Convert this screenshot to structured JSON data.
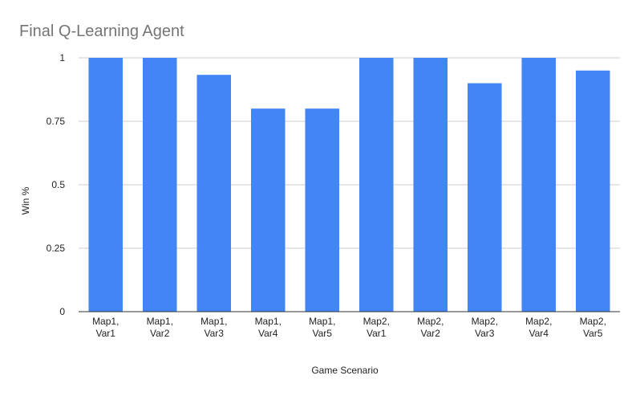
{
  "chart_data": {
    "type": "bar",
    "title": "Final Q-Learning Agent",
    "xlabel": "Game Scenario",
    "ylabel": "Win %",
    "categories": [
      [
        "Map1,",
        "Var1"
      ],
      [
        "Map1,",
        "Var2"
      ],
      [
        "Map1,",
        "Var3"
      ],
      [
        "Map1,",
        "Var4"
      ],
      [
        "Map1,",
        "Var5"
      ],
      [
        "Map2,",
        "Var1"
      ],
      [
        "Map2,",
        "Var2"
      ],
      [
        "Map2,",
        "Var3"
      ],
      [
        "Map2,",
        "Var4"
      ],
      [
        "Map2,",
        "Var5"
      ]
    ],
    "values": [
      1,
      1,
      0.933,
      0.8,
      0.8,
      1,
      1,
      0.9,
      1,
      0.95
    ],
    "ylim": [
      0,
      1
    ],
    "yticks": [
      "0",
      "0.25",
      "0.5",
      "0.75",
      "1"
    ],
    "grid": true,
    "legend": "none",
    "colors": {
      "bar": "#4285f4",
      "grid": "#cccccc",
      "axis": "#333333",
      "title": "#757575",
      "text": "#222222"
    }
  }
}
